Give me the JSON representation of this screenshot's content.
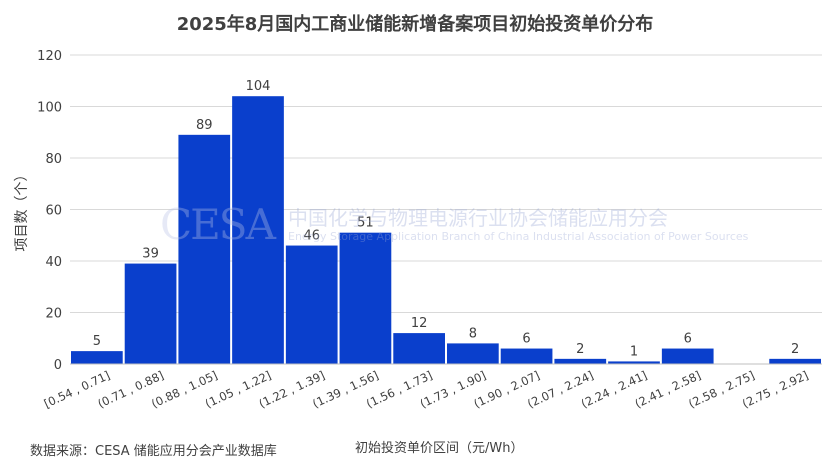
{
  "source_note": "数据来源：CESA 储能应用分会产业数据库",
  "watermark": {
    "logo": "CESA",
    "cn": "中国化学与物理电源行业协会储能应用分会",
    "en": "Energy Storage Application Branch of China Industrial Association of Power Sources"
  },
  "chart_data": {
    "type": "bar",
    "title": "2025年8月国内工商业储能新增备案项目初始投资单价分布",
    "xlabel": "初始投资单价区间（元/Wh）",
    "ylabel": "项目数（个）",
    "ylim": [
      0,
      120
    ],
    "yticks": [
      0,
      20,
      40,
      60,
      80,
      100,
      120
    ],
    "grid": true,
    "bar_color": "#0a3fcc",
    "categories": [
      "[0.54 , 0.71]",
      "(0.71 , 0.88]",
      "(0.88 , 1.05]",
      "(1.05 , 1.22]",
      "(1.22 , 1.39]",
      "(1.39 , 1.56]",
      "(1.56 , 1.73]",
      "(1.73 , 1.90]",
      "(1.90 , 2.07]",
      "(2.07 , 2.24]",
      "(2.24 , 2.41]",
      "(2.41 , 2.58]",
      "(2.58 , 2.75]",
      "(2.75 , 2.92]"
    ],
    "values": [
      5,
      39,
      89,
      104,
      46,
      51,
      12,
      8,
      6,
      2,
      1,
      6,
      0,
      2
    ],
    "data_labels": [
      "5",
      "39",
      "89",
      "104",
      "46",
      "51",
      "12",
      "8",
      "6",
      "2",
      "1",
      "6",
      "",
      "2"
    ]
  }
}
